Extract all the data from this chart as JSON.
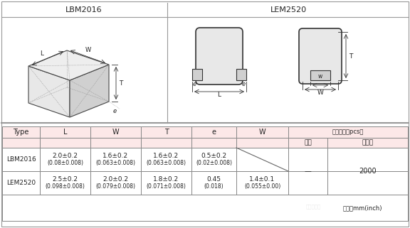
{
  "title_lbm": "LBM2016",
  "title_lem": "LEM2520",
  "row1_type": "LBM2016",
  "row2_type": "LEM2520",
  "row1_L": "2.0±0.2",
  "row1_L2": "(0.08±0.008)",
  "row1_W": "1.6±0.2",
  "row1_W2": "(0.063±0.008)",
  "row1_T": "1.6±0.2",
  "row1_T2": "(0.063±0.008)",
  "row1_e": "0.5±0.2",
  "row1_e2": "(0.02±0.008)",
  "row2_L": "2.5±0.2",
  "row2_L2": "(0.098±0.008)",
  "row2_W": "2.0±0.2",
  "row2_W2": "(0.079±0.008)",
  "row2_T": "1.8±0.2",
  "row2_T2": "(0.071±0.008)",
  "row2_e": "0.45",
  "row2_e2": "(0.018)",
  "row2_W5": "1.4±0.1",
  "row2_W5b": "(0.055±0.00)",
  "header_std": "标准数量［pcs］",
  "sub_zhidai": "纸带",
  "sub_yawen": "压纹带",
  "dash": "—",
  "qty": "2000",
  "unit": "单位：mm(inch)",
  "bg_pink": "#fce8e8",
  "bg_white": "#ffffff",
  "border_color": "#999999",
  "text_color": "#222222"
}
